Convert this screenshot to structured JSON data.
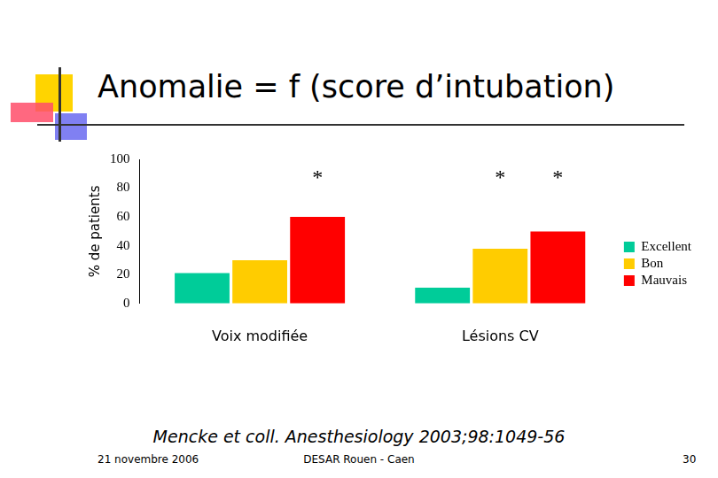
{
  "title": "Anomalie = f (score d’intubation)",
  "chart_data": {
    "type": "bar",
    "y_label": "% de patients",
    "categories": [
      "Voix modifiée",
      "Lésions CV"
    ],
    "series": [
      {
        "name": "Excellent",
        "color": "#00cc99",
        "values": [
          21,
          11
        ]
      },
      {
        "name": "Bon",
        "color": "#ffcc00",
        "values": [
          30,
          38
        ]
      },
      {
        "name": "Mauvais",
        "color": "#ff0000",
        "values": [
          60,
          50
        ]
      }
    ],
    "annotations": [
      {
        "text": "*",
        "category": "Voix modifiée",
        "series": "Mauvais"
      },
      {
        "text": "*",
        "category": "Lésions CV",
        "series": "Bon"
      },
      {
        "text": "*",
        "category": "Lésions CV",
        "series": "Mauvais"
      }
    ],
    "ylim": [
      0,
      100
    ],
    "yticks": [
      0,
      20,
      40,
      60,
      80,
      100
    ],
    "grid": false,
    "legend": "right"
  },
  "citation": "Mencke et coll. Anesthesiology 2003;98:1049-56",
  "date": "21 novembre 2006",
  "footer": "DESAR Rouen - Caen",
  "page": "30"
}
